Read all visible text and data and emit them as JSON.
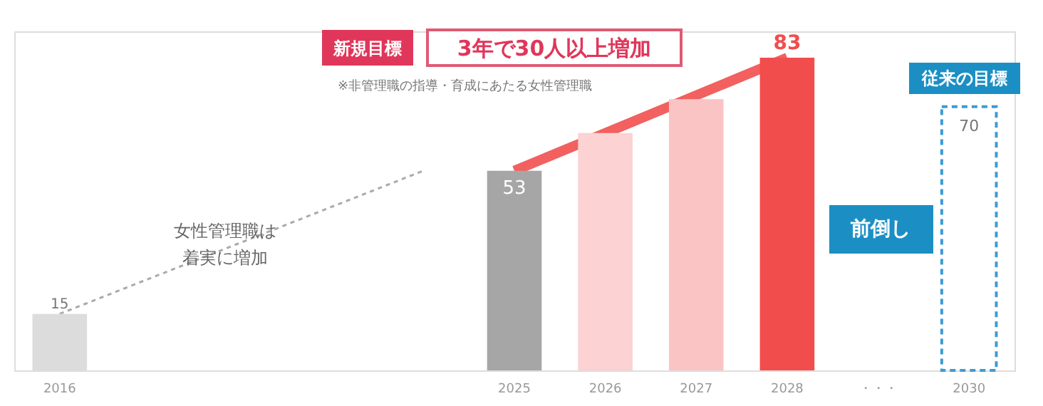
{
  "chart_data": {
    "type": "bar",
    "categories": [
      "2016",
      null,
      null,
      null,
      null,
      "2025",
      "2026",
      "2027",
      "2028",
      "・・・",
      "2030"
    ],
    "series": [
      {
        "colors": [
          "#dcdcdc",
          null,
          null,
          null,
          null,
          "#a6a6a6",
          "#fcd2d2",
          "#fbc4c4",
          "#f24d4d",
          null,
          null
        ],
        "values": [
          15,
          null,
          null,
          null,
          null,
          53,
          63,
          72,
          83,
          null,
          null
        ],
        "value_labels": [
          "15",
          null,
          null,
          null,
          null,
          "53",
          null,
          null,
          "83",
          null,
          null
        ]
      },
      {
        "color": "#3d9bd6",
        "line_style": "dashed",
        "values": [
          null,
          null,
          null,
          null,
          null,
          null,
          null,
          null,
          null,
          null,
          70
        ],
        "value_labels": [
          null,
          null,
          null,
          null,
          null,
          null,
          null,
          null,
          null,
          null,
          "70"
        ]
      }
    ],
    "ylim": [
      0,
      90
    ],
    "tick_labels": "x",
    "grid": false,
    "annotations": [
      "新規目標",
      "3年で30人以上増加",
      "※非管理職の指導・育成にあたる女性管理職",
      "女性管理職は",
      "着実に増加",
      "前倒し",
      "従来の目標"
    ]
  }
}
